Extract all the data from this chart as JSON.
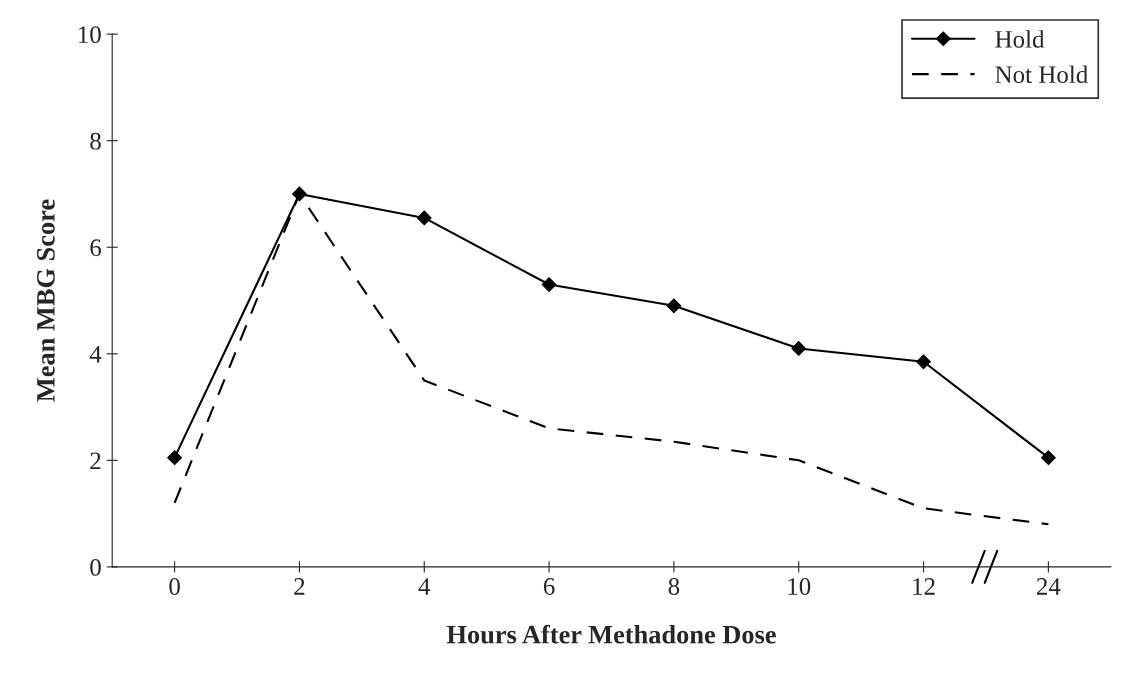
{
  "chart_data": {
    "type": "line",
    "xlabel": "Hours After Methadone Dose",
    "ylabel": "Mean MBG Score",
    "categories": [
      "0",
      "2",
      "4",
      "6",
      "8",
      "10",
      "12",
      "24"
    ],
    "series": [
      {
        "name": "Hold",
        "color": "#000000",
        "marker": "diamond",
        "line_style": "solid",
        "values": [
          2.05,
          7.0,
          6.55,
          5.3,
          4.9,
          4.1,
          3.85,
          2.05
        ]
      },
      {
        "name": "Not Hold",
        "color": "#000000",
        "marker": "none",
        "line_style": "dashed",
        "values": [
          1.2,
          7.0,
          3.5,
          2.6,
          2.35,
          2.0,
          1.1,
          0.8
        ]
      }
    ],
    "ylim": [
      0,
      10
    ],
    "yticks": [
      0,
      2,
      4,
      6,
      8,
      10
    ],
    "grid": false,
    "legend": "top right"
  }
}
